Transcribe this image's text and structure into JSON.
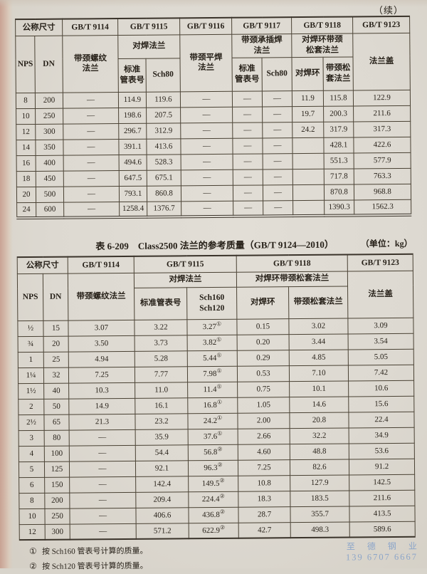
{
  "page": {
    "continued_mark": "（续）",
    "watermark": {
      "line1": "至 德 钢 业",
      "line2": "139 6707 6667",
      "color": "#8ca5c9"
    }
  },
  "table1": {
    "header": {
      "size_label": "公称尺寸",
      "nps": "NPS",
      "dn": "DN",
      "standards": [
        "GB/T 9114",
        "GB/T 9115",
        "GB/T 9116",
        "GB/T 9117",
        "GB/T 9118",
        "GB/T 9123"
      ],
      "type_9114": "带颈螺纹\n法兰",
      "type_9115": "对焊法兰",
      "type_9116": "带颈平焊\n法兰",
      "type_9117": "带颈承插焊\n法兰",
      "type_9118": "对焊环带颈\n松套法兰",
      "type_9123": "法兰盖",
      "sub_9115": [
        "标准\n管表号",
        "Sch80"
      ],
      "sub_9117": [
        "标准\n管表号",
        "Sch80"
      ],
      "sub_9118": [
        "对焊环",
        "带颈松\n套法兰"
      ]
    },
    "rows": [
      [
        "8",
        "200",
        "—",
        "114.9",
        "119.6",
        "—",
        "—",
        "—",
        "11.9",
        "115.8",
        "122.9"
      ],
      [
        "10",
        "250",
        "—",
        "198.6",
        "207.5",
        "—",
        "—",
        "—",
        "19.7",
        "200.3",
        "211.6"
      ],
      [
        "12",
        "300",
        "—",
        "296.7",
        "312.9",
        "—",
        "—",
        "—",
        "24.2",
        "317.9",
        "317.3"
      ],
      [
        "14",
        "350",
        "—",
        "391.1",
        "413.6",
        "—",
        "—",
        "—",
        "",
        "428.1",
        "422.6"
      ],
      [
        "16",
        "400",
        "—",
        "494.6",
        "528.3",
        "—",
        "—",
        "—",
        "",
        "551.3",
        "577.9"
      ],
      [
        "18",
        "450",
        "—",
        "647.5",
        "675.1",
        "—",
        "—",
        "—",
        "",
        "717.8",
        "763.3"
      ],
      [
        "20",
        "500",
        "—",
        "793.1",
        "860.8",
        "—",
        "—",
        "—",
        "",
        "870.8",
        "968.8"
      ],
      [
        "24",
        "600",
        "—",
        "1258.4",
        "1376.7",
        "—",
        "—",
        "—",
        "",
        "1390.3",
        "1562.3"
      ]
    ]
  },
  "table2": {
    "title": "表 6-209　Class2500 法兰的参考质量（GB/T 9124—2010）",
    "unit_note": "（单位：kg）",
    "header": {
      "size_label": "公称尺寸",
      "nps": "NPS",
      "dn": "DN",
      "standards": [
        "GB/T 9114",
        "GB/T 9115",
        "GB/T 9118",
        "GB/T 9123"
      ],
      "type_9114": "带颈螺纹法兰",
      "type_9115": "对焊法兰",
      "type_9118": "对焊环带颈松套法兰",
      "type_9123": "法兰盖",
      "sub_9115": [
        "标准管表号",
        "Sch160\nSch120"
      ],
      "sub_9118": [
        "对焊环",
        "带颈松套法兰"
      ]
    },
    "rows": [
      [
        "½",
        "15",
        "3.07",
        "3.22",
        "3.27①",
        "0.15",
        "3.02",
        "3.09"
      ],
      [
        "¾",
        "20",
        "3.50",
        "3.73",
        "3.82①",
        "0.20",
        "3.44",
        "3.54"
      ],
      [
        "1",
        "25",
        "4.94",
        "5.28",
        "5.44①",
        "0.29",
        "4.85",
        "5.05"
      ],
      [
        "1¼",
        "32",
        "7.25",
        "7.77",
        "7.98①",
        "0.53",
        "7.10",
        "7.42"
      ],
      [
        "1½",
        "40",
        "10.3",
        "11.0",
        "11.4①",
        "0.75",
        "10.1",
        "10.6"
      ],
      [
        "2",
        "50",
        "14.9",
        "16.1",
        "16.8①",
        "1.05",
        "14.6",
        "15.6"
      ],
      [
        "2½",
        "65",
        "21.3",
        "23.2",
        "24.2①",
        "2.00",
        "20.8",
        "22.4"
      ],
      [
        "3",
        "80",
        "—",
        "35.9",
        "37.6①",
        "2.66",
        "32.2",
        "34.9"
      ],
      [
        "4",
        "100",
        "—",
        "54.4",
        "56.8②",
        "4.60",
        "48.8",
        "53.6"
      ],
      [
        "5",
        "125",
        "—",
        "92.1",
        "96.3②",
        "7.25",
        "82.6",
        "91.2"
      ],
      [
        "6",
        "150",
        "—",
        "142.4",
        "149.5②",
        "10.8",
        "127.9",
        "142.5"
      ],
      [
        "8",
        "200",
        "—",
        "209.4",
        "224.4②",
        "18.3",
        "183.5",
        "211.6"
      ],
      [
        "10",
        "250",
        "—",
        "406.6",
        "436.8②",
        "28.7",
        "355.7",
        "413.5"
      ],
      [
        "12",
        "300",
        "—",
        "571.2",
        "622.9②",
        "42.7",
        "498.3",
        "589.6"
      ]
    ]
  },
  "footnotes": [
    {
      "marker": "①",
      "text": "按 Sch160 管表号计算的质量。"
    },
    {
      "marker": "②",
      "text": "按 Sch120 管表号计算的质量。"
    }
  ]
}
